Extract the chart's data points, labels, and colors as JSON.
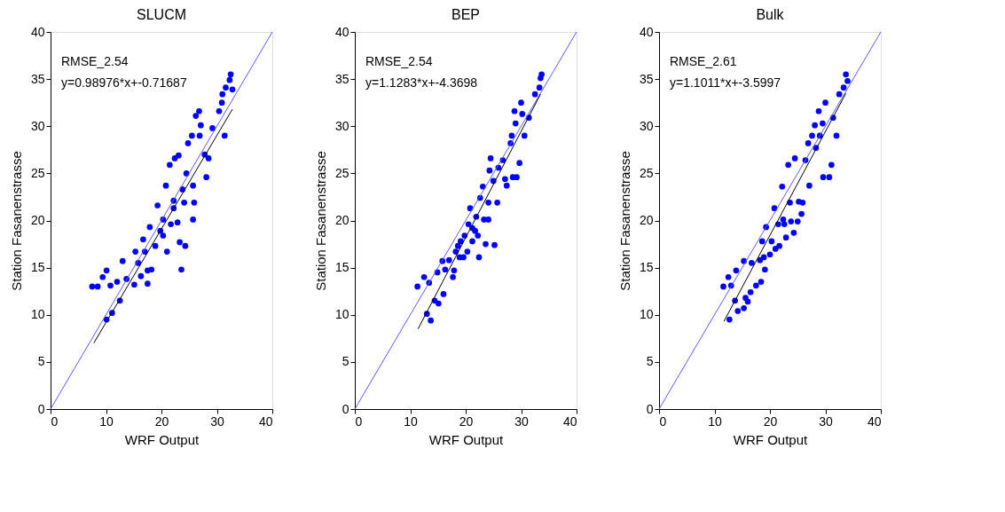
{
  "chart_data": [
    {
      "type": "scatter",
      "title": "SLUCM",
      "xlabel": "WRF Output",
      "ylabel": "Station Fasanenstrasse",
      "xlim": [
        0,
        40
      ],
      "xticks": [
        0,
        10,
        20,
        30,
        40
      ],
      "ylim": [
        0,
        40
      ],
      "yticks": [
        0,
        5,
        10,
        15,
        20,
        25,
        30,
        35,
        40
      ],
      "grid": false,
      "marker": "circle",
      "annotations": [
        "RMSE_2.54",
        "y=0.98976*x+-0.71687"
      ],
      "series": [
        {
          "type": "scatter",
          "color": "#0000ff",
          "x": [
            7.5,
            8.5,
            10.1,
            9.4,
            10.8,
            12.0,
            10.1,
            11.1,
            12.5,
            13.0,
            15.1,
            15.3,
            16.3,
            16.7,
            17.5,
            17.5,
            17.9,
            18.2,
            18.9,
            19.3,
            19.8,
            20.3,
            20.8,
            21.0,
            21.5,
            21.7,
            22.2,
            22.4,
            22.9,
            23.1,
            23.3,
            23.6,
            23.8,
            24.1,
            24.3,
            24.5,
            24.8,
            25.5,
            25.7,
            25.9,
            26.2,
            26.8,
            26.9,
            27.1,
            27.8,
            28.1,
            28.5,
            29.2,
            30.4,
            30.9,
            31.0,
            31.4,
            31.6,
            32.3,
            32.5,
            32.8,
            25.7,
            22.2,
            20.3,
            17.0,
            15.8,
            13.7
          ],
          "values": [
            13.0,
            13.0,
            14.7,
            14.0,
            13.1,
            13.5,
            9.5,
            10.2,
            11.5,
            15.7,
            13.2,
            16.7,
            14.1,
            18.0,
            14.7,
            13.3,
            19.3,
            14.8,
            17.3,
            21.6,
            18.9,
            20.1,
            23.7,
            16.7,
            25.9,
            19.6,
            21.3,
            26.6,
            19.8,
            26.9,
            17.7,
            14.8,
            23.3,
            21.9,
            17.3,
            25.0,
            28.2,
            29.0,
            23.7,
            21.9,
            31.1,
            31.6,
            29.0,
            30.1,
            27.0,
            24.6,
            26.6,
            29.8,
            31.6,
            32.5,
            33.4,
            29.0,
            34.1,
            34.9,
            35.5,
            33.9,
            20.1,
            22.1,
            18.4,
            16.7,
            15.5,
            13.8
          ]
        },
        {
          "type": "line",
          "color": "#5a5aff",
          "x": [
            0,
            40
          ],
          "values": [
            0,
            40
          ],
          "marker": "none"
        },
        {
          "type": "line",
          "color": "#000000",
          "x": [
            7.8,
            32.8
          ],
          "values": [
            7.0,
            31.8
          ],
          "marker": "none"
        }
      ]
    },
    {
      "type": "scatter",
      "title": "BEP",
      "xlabel": "WRF Output",
      "ylabel": "Station Fasanenstrasse",
      "xlim": [
        0,
        40
      ],
      "xticks": [
        0,
        10,
        20,
        30,
        40
      ],
      "ylim": [
        0,
        40
      ],
      "yticks": [
        0,
        5,
        10,
        15,
        20,
        25,
        30,
        35,
        40
      ],
      "grid": false,
      "marker": "circle",
      "annotations": [
        "RMSE_2.54",
        "y=1.1283*x+-4.3698"
      ],
      "series": [
        {
          "type": "scatter",
          "color": "#0000ff",
          "x": [
            11.3,
            12.5,
            13.4,
            13.0,
            13.7,
            14.4,
            15.1,
            14.9,
            16.0,
            15.8,
            17.0,
            16.3,
            17.7,
            17.9,
            18.2,
            18.6,
            19.1,
            19.6,
            19.8,
            20.3,
            20.5,
            20.8,
            21.2,
            21.7,
            21.9,
            22.4,
            22.6,
            23.1,
            23.3,
            23.6,
            24.1,
            24.3,
            24.5,
            25.0,
            25.2,
            25.7,
            25.9,
            26.7,
            27.1,
            27.4,
            28.1,
            28.3,
            28.5,
            28.8,
            29.0,
            29.2,
            29.7,
            30.0,
            30.2,
            30.6,
            31.4,
            32.5,
            33.3,
            33.5,
            33.7,
            24.1,
            22.2,
            21.2,
            18.9
          ],
          "values": [
            13.0,
            14.0,
            13.4,
            10.1,
            9.4,
            11.5,
            11.2,
            14.5,
            12.2,
            15.7,
            15.8,
            14.8,
            14.0,
            14.7,
            16.7,
            17.3,
            17.8,
            16.1,
            18.4,
            16.7,
            19.6,
            21.3,
            17.8,
            18.9,
            20.4,
            16.1,
            22.4,
            23.6,
            20.1,
            17.5,
            20.1,
            25.3,
            26.6,
            24.2,
            17.4,
            21.9,
            25.6,
            26.4,
            24.4,
            23.7,
            28.2,
            29.0,
            24.6,
            31.6,
            30.3,
            24.6,
            26.1,
            32.5,
            31.3,
            29.0,
            30.9,
            33.4,
            34.1,
            35.1,
            35.5,
            21.9,
            18.4,
            19.2,
            16.1
          ]
        },
        {
          "type": "line",
          "color": "#5a5aff",
          "x": [
            0,
            40
          ],
          "values": [
            0,
            40
          ],
          "marker": "none"
        },
        {
          "type": "line",
          "color": "#000000",
          "x": [
            11.4,
            33.5
          ],
          "values": [
            8.5,
            33.4
          ],
          "marker": "none"
        }
      ]
    },
    {
      "type": "scatter",
      "title": "Bulk",
      "xlabel": "WRF Output",
      "ylabel": "Station Fasanenstrasse",
      "xlim": [
        0,
        40
      ],
      "xticks": [
        0,
        10,
        20,
        30,
        40
      ],
      "ylim": [
        0,
        40
      ],
      "yticks": [
        0,
        5,
        10,
        15,
        20,
        25,
        30,
        35,
        40
      ],
      "grid": false,
      "marker": "circle",
      "annotations": [
        "RMSE_2.61",
        "y=1.1011*x+-3.5997"
      ],
      "series": [
        {
          "type": "scatter",
          "color": "#0000ff",
          "x": [
            11.6,
            12.5,
            13.0,
            13.9,
            13.7,
            12.7,
            14.2,
            15.3,
            15.6,
            16.0,
            16.5,
            16.7,
            15.3,
            17.5,
            18.2,
            18.4,
            18.6,
            19.1,
            19.3,
            20.0,
            20.3,
            20.8,
            21.0,
            21.5,
            21.7,
            22.2,
            22.4,
            22.9,
            23.3,
            23.6,
            23.8,
            24.3,
            24.5,
            25.0,
            25.2,
            25.7,
            26.4,
            26.9,
            27.1,
            27.6,
            28.1,
            28.3,
            28.8,
            29.0,
            29.5,
            29.6,
            30.0,
            30.7,
            31.1,
            31.4,
            32.0,
            32.5,
            33.3,
            33.7,
            34.0,
            25.9,
            22.6,
            18.9
          ],
          "values": [
            13.0,
            14.0,
            13.1,
            14.7,
            11.5,
            9.5,
            10.4,
            10.7,
            11.8,
            11.4,
            12.4,
            15.5,
            15.7,
            13.1,
            15.8,
            13.5,
            17.8,
            14.8,
            19.3,
            16.4,
            17.8,
            21.3,
            17.0,
            19.6,
            17.3,
            23.6,
            20.1,
            18.2,
            25.9,
            21.9,
            19.9,
            18.7,
            26.6,
            19.9,
            22.0,
            20.7,
            26.4,
            28.2,
            23.7,
            29.0,
            30.1,
            27.7,
            31.6,
            29.0,
            30.3,
            24.6,
            32.5,
            24.6,
            25.9,
            30.9,
            29.0,
            33.4,
            34.1,
            35.5,
            34.8,
            21.9,
            19.6,
            16.1
          ]
        },
        {
          "type": "line",
          "color": "#5a5aff",
          "x": [
            0,
            40
          ],
          "values": [
            0,
            40
          ],
          "marker": "none"
        },
        {
          "type": "line",
          "color": "#000000",
          "x": [
            11.7,
            33.7
          ],
          "values": [
            9.3,
            33.5
          ],
          "marker": "none"
        }
      ]
    }
  ]
}
